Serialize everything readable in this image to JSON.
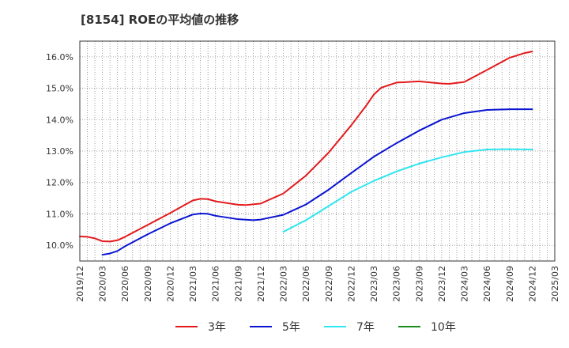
{
  "chart_data": {
    "type": "line",
    "title": "[8154]  ROEの平均値の推移",
    "xlabel": "",
    "ylabel": "",
    "ylim": [
      9.5,
      16.5
    ],
    "yticks": [
      10.0,
      11.0,
      12.0,
      13.0,
      14.0,
      15.0,
      16.0
    ],
    "ytick_labels": [
      "10.0%",
      "11.0%",
      "12.0%",
      "13.0%",
      "14.0%",
      "15.0%",
      "16.0%"
    ],
    "xlim": [
      "2019/12",
      "2025/03"
    ],
    "x_tick_labels": [
      "2019/12",
      "2020/03",
      "2020/06",
      "2020/09",
      "2020/12",
      "2021/03",
      "2021/06",
      "2021/09",
      "2021/12",
      "2022/03",
      "2022/06",
      "2022/09",
      "2022/12",
      "2023/03",
      "2023/06",
      "2023/09",
      "2023/12",
      "2024/03",
      "2024/06",
      "2024/09",
      "2024/12",
      "2025/03"
    ],
    "grid": true,
    "legend_position": "bottom",
    "series": [
      {
        "name": "3年",
        "color": "#e31a1c",
        "x": [
          "2019/12",
          "2020/01",
          "2020/02",
          "2020/03",
          "2020/04",
          "2020/05",
          "2020/06",
          "2020/09",
          "2020/12",
          "2021/03",
          "2021/04",
          "2021/05",
          "2021/06",
          "2021/09",
          "2021/10",
          "2021/12",
          "2022/03",
          "2022/06",
          "2022/09",
          "2022/12",
          "2023/02",
          "2023/03",
          "2023/04",
          "2023/06",
          "2023/09",
          "2023/12",
          "2024/01",
          "2024/03",
          "2024/06",
          "2024/09",
          "2024/11",
          "2024/12"
        ],
        "values": [
          10.28,
          10.27,
          10.22,
          10.13,
          10.12,
          10.16,
          10.27,
          10.65,
          11.03,
          11.43,
          11.48,
          11.47,
          11.4,
          11.29,
          11.28,
          11.33,
          11.65,
          12.22,
          12.95,
          13.82,
          14.45,
          14.8,
          15.02,
          15.18,
          15.22,
          15.15,
          15.14,
          15.2,
          15.58,
          15.97,
          16.12,
          16.17
        ]
      },
      {
        "name": "5年",
        "color": "#0a14d0",
        "x": [
          "2020/03",
          "2020/04",
          "2020/05",
          "2020/06",
          "2020/09",
          "2020/12",
          "2021/03",
          "2021/04",
          "2021/05",
          "2021/06",
          "2021/09",
          "2021/11",
          "2021/12",
          "2022/03",
          "2022/06",
          "2022/09",
          "2022/12",
          "2023/03",
          "2023/06",
          "2023/09",
          "2023/12",
          "2024/03",
          "2024/06",
          "2024/09",
          "2024/12"
        ],
        "values": [
          9.7,
          9.74,
          9.82,
          9.97,
          10.35,
          10.7,
          10.98,
          11.01,
          11.0,
          10.94,
          10.83,
          10.8,
          10.82,
          10.97,
          11.3,
          11.77,
          12.3,
          12.82,
          13.25,
          13.65,
          14.0,
          14.21,
          14.31,
          14.33,
          14.33
        ]
      },
      {
        "name": "7年",
        "color": "#2fe5f0",
        "x": [
          "2022/03",
          "2022/06",
          "2022/09",
          "2022/12",
          "2023/03",
          "2023/06",
          "2023/09",
          "2023/12",
          "2024/03",
          "2024/06",
          "2024/09",
          "2024/12"
        ],
        "values": [
          10.43,
          10.8,
          11.25,
          11.7,
          12.05,
          12.35,
          12.6,
          12.8,
          12.97,
          13.05,
          13.06,
          13.05
        ]
      },
      {
        "name": "10年",
        "color": "#1a8a1a",
        "x": [],
        "values": []
      }
    ]
  }
}
